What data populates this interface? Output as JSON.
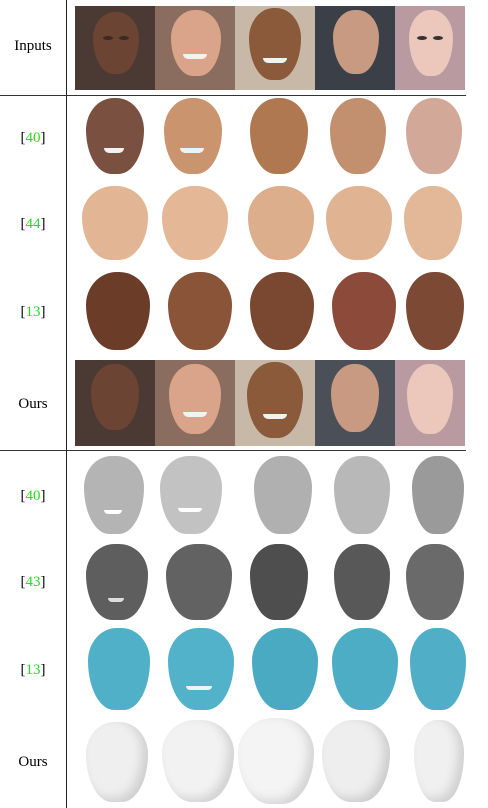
{
  "rows": [
    {
      "key": "inputs",
      "label_plain": "Inputs"
    },
    {
      "key": "r40a",
      "label_ref": "40"
    },
    {
      "key": "r44",
      "label_ref": "44"
    },
    {
      "key": "r13a",
      "label_ref": "13"
    },
    {
      "key": "ours_tex",
      "label_plain": "Ours"
    },
    {
      "key": "r40b",
      "label_ref": "40"
    },
    {
      "key": "r43",
      "label_ref": "43"
    },
    {
      "key": "r13b",
      "label_ref": "13"
    },
    {
      "key": "ours_geo",
      "label_plain": "Ours"
    }
  ],
  "colors": {
    "ref_link": "#22dd22",
    "skin_dark": "#6b4433",
    "skin_light": "#e0b69c",
    "mesh_gray_light": "#bcbcbc",
    "mesh_gray_dark": "#5a5a5a",
    "mesh_blue": "#4fb0c8",
    "mesh_white": "#f4f4f4"
  }
}
